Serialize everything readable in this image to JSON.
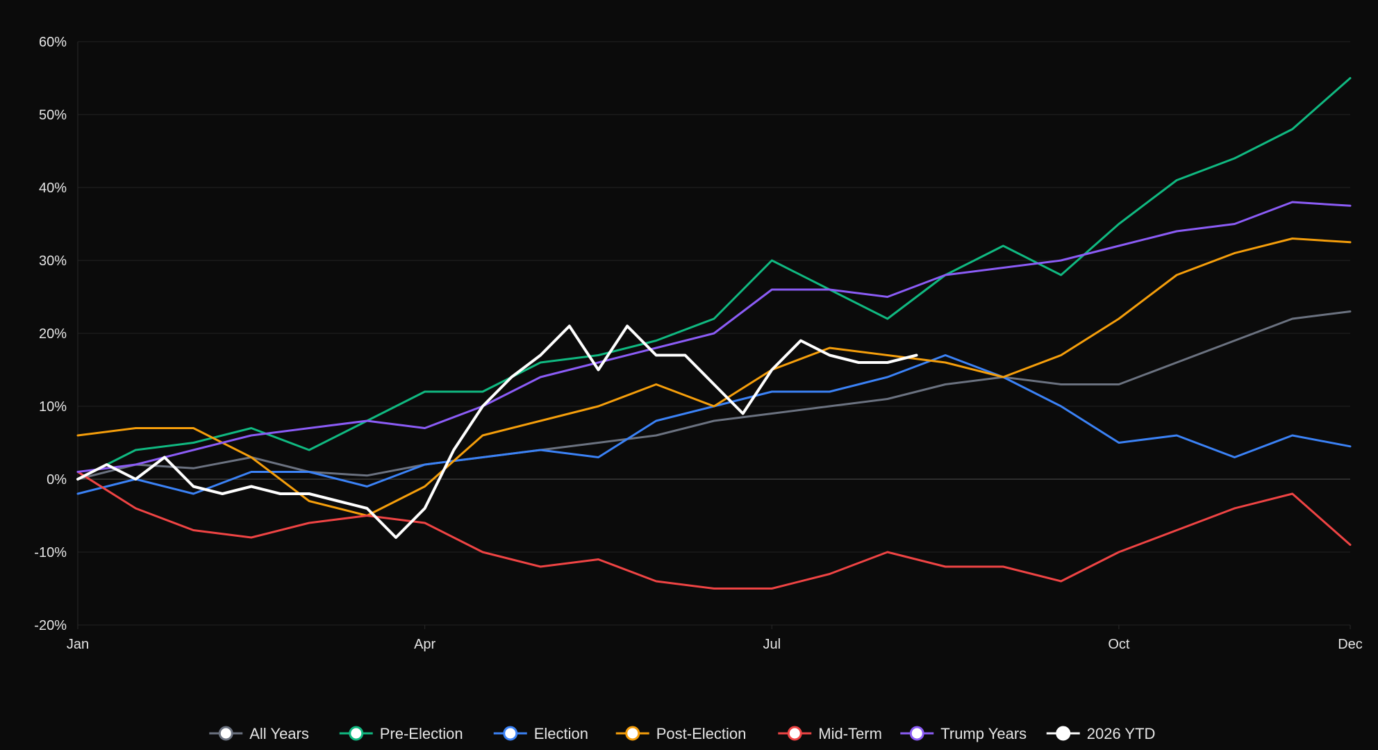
{
  "chart_data": {
    "type": "line",
    "title": "",
    "xlabel": "",
    "ylabel": "",
    "x_ticks": [
      "Jan",
      "Apr",
      "Jul",
      "Oct",
      "Dec"
    ],
    "x_tick_positions": [
      0,
      3,
      6,
      9,
      11
    ],
    "xlim": [
      0,
      11
    ],
    "ylim": [
      -20,
      60
    ],
    "y_ticks": [
      -20,
      -10,
      0,
      10,
      20,
      30,
      40,
      50,
      60
    ],
    "y_tick_labels": [
      "-20%",
      "-10%",
      "0%",
      "10%",
      "20%",
      "30%",
      "40%",
      "50%",
      "60%"
    ],
    "grid": "horizontal",
    "legend_position": "bottom",
    "series": [
      {
        "name": "All Years",
        "color": "#6b7280",
        "stroke_width": 3,
        "x": [
          0,
          0.5,
          1,
          1.5,
          2,
          2.5,
          3,
          3.5,
          4,
          4.5,
          5,
          5.5,
          6,
          6.5,
          7,
          7.5,
          8,
          8.5,
          9,
          9.5,
          10,
          10.5,
          11
        ],
        "y": [
          0,
          2,
          1.5,
          3,
          1,
          0.5,
          2,
          3,
          4,
          5,
          6,
          8,
          9,
          10,
          11,
          13,
          14,
          13,
          13,
          16,
          19,
          22,
          23
        ]
      },
      {
        "name": "Pre-Election",
        "color": "#10b981",
        "stroke_width": 3,
        "x": [
          0,
          0.5,
          1,
          1.5,
          2,
          2.5,
          3,
          3.5,
          4,
          4.5,
          5,
          5.5,
          6,
          6.5,
          7,
          7.5,
          8,
          8.5,
          9,
          9.5,
          10,
          10.5,
          11
        ],
        "y": [
          0,
          4,
          5,
          7,
          4,
          8,
          12,
          12,
          16,
          17,
          19,
          22,
          30,
          26,
          22,
          28,
          32,
          28,
          35,
          41,
          44,
          48,
          55
        ]
      },
      {
        "name": "Election",
        "color": "#3b82f6",
        "stroke_width": 3,
        "x": [
          0,
          0.5,
          1,
          1.5,
          2,
          2.5,
          3,
          3.5,
          4,
          4.5,
          5,
          5.5,
          6,
          6.5,
          7,
          7.5,
          8,
          8.5,
          9,
          9.5,
          10,
          10.5,
          11
        ],
        "y": [
          -2,
          0,
          -2,
          1,
          1,
          -1,
          2,
          3,
          4,
          3,
          8,
          10,
          12,
          12,
          14,
          17,
          14,
          10,
          5,
          6,
          3,
          6,
          4.5
        ]
      },
      {
        "name": "Post-Election",
        "color": "#f59e0b",
        "stroke_width": 3,
        "x": [
          0,
          0.5,
          1,
          1.5,
          2,
          2.5,
          3,
          3.5,
          4,
          4.5,
          5,
          5.5,
          6,
          6.5,
          7,
          7.5,
          8,
          8.5,
          9,
          9.5,
          10,
          10.5,
          11
        ],
        "y": [
          6,
          7,
          7,
          3,
          -3,
          -5,
          -1,
          6,
          8,
          10,
          13,
          10,
          15,
          18,
          17,
          16,
          14,
          17,
          22,
          28,
          31,
          33,
          32.5
        ]
      },
      {
        "name": "Mid-Term",
        "color": "#ef4444",
        "stroke_width": 3,
        "x": [
          0,
          0.5,
          1,
          1.5,
          2,
          2.5,
          3,
          3.5,
          4,
          4.5,
          5,
          5.5,
          6,
          6.5,
          7,
          7.5,
          8,
          8.5,
          9,
          9.5,
          10,
          10.5,
          11
        ],
        "y": [
          1,
          -4,
          -7,
          -8,
          -6,
          -5,
          -6,
          -10,
          -12,
          -11,
          -14,
          -15,
          -15,
          -13,
          -10,
          -12,
          -12,
          -14,
          -10,
          -7,
          -4,
          -2,
          -9
        ]
      },
      {
        "name": "Trump Years",
        "color": "#8b5cf6",
        "stroke_width": 3,
        "x": [
          0,
          0.5,
          1,
          1.5,
          2,
          2.5,
          3,
          3.5,
          4,
          4.5,
          5,
          5.5,
          6,
          6.5,
          7,
          7.5,
          8,
          8.5,
          9,
          9.5,
          10,
          10.5,
          11
        ],
        "y": [
          1,
          2,
          4,
          6,
          7,
          8,
          7,
          10,
          14,
          16,
          18,
          20,
          26,
          26,
          25,
          28,
          29,
          30,
          32,
          34,
          35,
          38,
          37.5
        ]
      },
      {
        "name": "2026 YTD",
        "color": "#ffffff",
        "stroke_width": 4,
        "x": [
          0,
          0.25,
          0.5,
          0.75,
          1,
          1.25,
          1.5,
          1.75,
          2,
          2.25,
          2.5,
          2.75,
          3,
          3.25,
          3.5,
          3.75,
          4,
          4.25,
          4.5,
          4.75,
          5,
          5.25,
          5.5,
          5.75,
          6,
          6.25,
          6.5,
          6.75,
          7,
          7.25
        ],
        "y": [
          0,
          2,
          0,
          3,
          -1,
          -2,
          -1,
          -2,
          -2,
          -3,
          -4,
          -8,
          -4,
          4,
          10,
          14,
          17,
          21,
          15,
          21,
          17,
          17,
          13,
          9,
          15,
          19,
          17,
          16,
          16,
          17
        ]
      }
    ]
  }
}
